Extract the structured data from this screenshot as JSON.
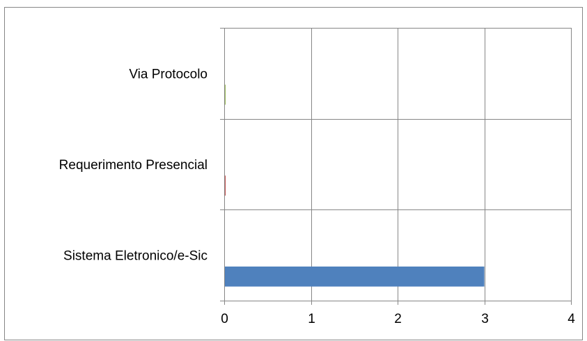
{
  "chart_data": {
    "type": "bar",
    "orientation": "horizontal",
    "categories": [
      "Sistema Eletronico/e-Sic",
      "Requerimento Presencial",
      "Via Protocolo"
    ],
    "series": [
      {
        "values": [
          3,
          0,
          0
        ]
      }
    ],
    "bar_colors": [
      "#4F81BD",
      "#C0504D",
      "#9BBB59"
    ],
    "xlim": [
      0,
      4
    ],
    "x_ticks": [
      "0",
      "1",
      "2",
      "3",
      "4"
    ],
    "grid": true,
    "legend": "none",
    "title": "",
    "xlabel": "",
    "ylabel": ""
  }
}
